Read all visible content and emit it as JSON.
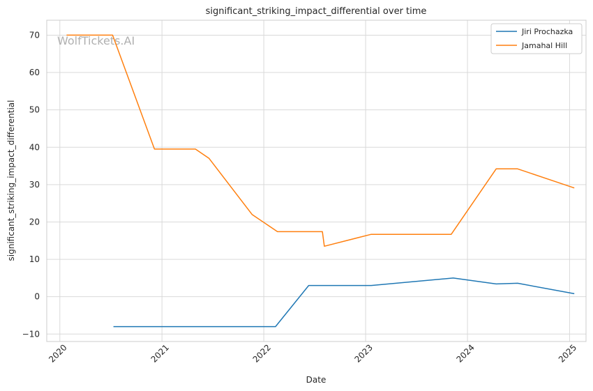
{
  "watermark": "WolfTickets.AI",
  "chart_data": {
    "type": "line",
    "title": "significant_striking_impact_differential over time",
    "xlabel": "Date",
    "ylabel": "significant_striking_impact_differential",
    "x_axis_type": "date",
    "xlim": [
      "2019-11-15",
      "2025-03-01"
    ],
    "ylim": [
      -12,
      74
    ],
    "x_ticks": [
      "2020-01-01",
      "2021-01-01",
      "2022-01-01",
      "2023-01-01",
      "2024-01-01",
      "2025-01-01"
    ],
    "x_tick_labels": [
      "2020",
      "2021",
      "2022",
      "2023",
      "2024",
      "2025"
    ],
    "y_ticks": [
      -10,
      0,
      10,
      20,
      30,
      40,
      50,
      60,
      70
    ],
    "y_tick_labels": [
      "−10",
      "0",
      "10",
      "20",
      "30",
      "40",
      "50",
      "60",
      "70"
    ],
    "grid": true,
    "legend_position": "top-right",
    "series": [
      {
        "name": "Jiri Prochazka",
        "color": "#1f77b4",
        "points": [
          {
            "x": "2020-07-11",
            "y": -8
          },
          {
            "x": "2021-05-01",
            "y": -8
          },
          {
            "x": "2022-02-12",
            "y": -8
          },
          {
            "x": "2022-06-11",
            "y": 3
          },
          {
            "x": "2023-01-21",
            "y": 3
          },
          {
            "x": "2023-11-11",
            "y": 5
          },
          {
            "x": "2024-04-13",
            "y": 3.4
          },
          {
            "x": "2024-06-29",
            "y": 3.6
          },
          {
            "x": "2025-01-18",
            "y": 0.8
          }
        ]
      },
      {
        "name": "Jamahal Hill",
        "color": "#ff7f0e",
        "points": [
          {
            "x": "2020-01-25",
            "y": 70
          },
          {
            "x": "2020-07-08",
            "y": 70
          },
          {
            "x": "2020-12-05",
            "y": 39.5
          },
          {
            "x": "2021-05-01",
            "y": 39.5
          },
          {
            "x": "2021-06-19",
            "y": 37
          },
          {
            "x": "2021-11-20",
            "y": 22
          },
          {
            "x": "2022-02-19",
            "y": 17.4
          },
          {
            "x": "2022-07-30",
            "y": 17.4
          },
          {
            "x": "2022-08-06",
            "y": 13.5
          },
          {
            "x": "2023-01-21",
            "y": 16.7
          },
          {
            "x": "2023-11-04",
            "y": 16.7
          },
          {
            "x": "2024-04-13",
            "y": 34.2
          },
          {
            "x": "2024-06-29",
            "y": 34.2
          },
          {
            "x": "2025-01-18",
            "y": 29.1
          }
        ]
      }
    ]
  }
}
